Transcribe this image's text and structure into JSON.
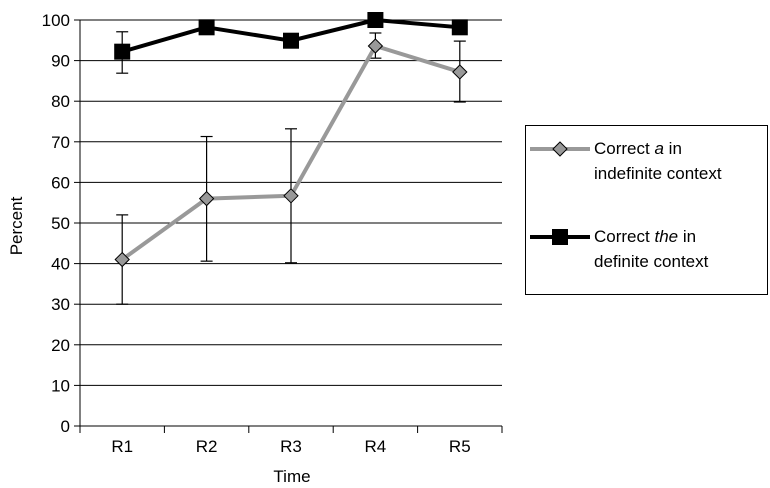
{
  "chart_data": {
    "type": "line",
    "title": "",
    "xlabel": "Time",
    "ylabel": "Percent",
    "categories": [
      "R1",
      "R2",
      "R3",
      "R4",
      "R5"
    ],
    "ylim": [
      0,
      100
    ],
    "yticks": [
      "0",
      "10",
      "20",
      "30",
      "40",
      "50",
      "60",
      "70",
      "80",
      "90",
      "100"
    ],
    "grid": true,
    "legend_position": "right",
    "series": [
      {
        "name": "Correct a in indefinite context",
        "legend_line1_prefix": "Correct ",
        "legend_line1_italic": "a",
        "legend_line1_suffix": " in",
        "legend_line2": "indefinite context",
        "color": "#999999",
        "marker": "diamond",
        "values": [
          41,
          56,
          56.7,
          93.6,
          87.2
        ],
        "error_low": [
          30,
          40.6,
          40.2,
          90.6,
          79.8
        ],
        "error_high": [
          52,
          71.3,
          73.2,
          96.8,
          94.8
        ]
      },
      {
        "name": "Correct the in definite context",
        "legend_line1_prefix": "Correct ",
        "legend_line1_italic": "the",
        "legend_line1_suffix": " in",
        "legend_line2": "definite context",
        "color": "#000000",
        "marker": "square",
        "values": [
          92.2,
          98.2,
          94.9,
          100,
          98.2
        ],
        "error_low": [
          86.9,
          null,
          null,
          null,
          null
        ],
        "error_high": [
          97.1,
          null,
          null,
          null,
          null
        ]
      }
    ]
  }
}
